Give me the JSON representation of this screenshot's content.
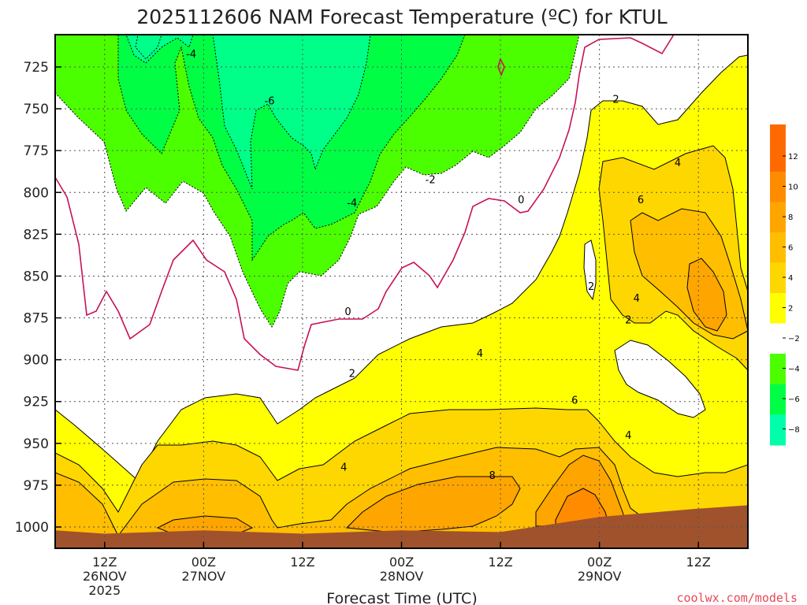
{
  "chart_data": {
    "type": "contour",
    "title": "2025112606 NAM Forecast Temperature (ºC) for KTUL",
    "xlabel": "Forecast Time (UTC)",
    "ylabel": "",
    "y_ticks": [
      725,
      750,
      775,
      800,
      825,
      850,
      875,
      900,
      925,
      950,
      975,
      1000
    ],
    "ylim": [
      1012,
      710
    ],
    "x_ticks": [
      {
        "label": "12Z",
        "sub": "26NOV",
        "sub2": "2025",
        "hour": 6
      },
      {
        "label": "00Z",
        "sub": "27NOV",
        "sub2": "",
        "hour": 18
      },
      {
        "label": "12Z",
        "sub": "",
        "sub2": "",
        "hour": 30
      },
      {
        "label": "00Z",
        "sub": "28NOV",
        "sub2": "",
        "hour": 42
      },
      {
        "label": "12Z",
        "sub": "",
        "sub2": "",
        "hour": 54
      },
      {
        "label": "00Z",
        "sub": "29NOV",
        "sub2": "",
        "hour": 66
      },
      {
        "label": "12Z",
        "sub": "",
        "sub2": "",
        "hour": 78
      }
    ],
    "xlim": [
      0,
      84
    ],
    "colorbar": {
      "levels": [
        {
          "value": "12",
          "color": "#ff6a00"
        },
        {
          "value": "10",
          "color": "#ff8c00"
        },
        {
          "value": "8",
          "color": "#ffa500"
        },
        {
          "value": "6",
          "color": "#ffbe00"
        },
        {
          "value": "4",
          "color": "#ffd700"
        },
        {
          "value": "2",
          "color": "#ffff00"
        },
        {
          "value": "−2",
          "color": "#ffffff"
        },
        {
          "value": "−4",
          "color": "#4cff00"
        },
        {
          "value": "−6",
          "color": "#00ff44"
        },
        {
          "value": "−8",
          "color": "#00ff88"
        }
      ],
      "bottom_color": "#00ffaa"
    },
    "contour_labels": [
      {
        "text": "-4",
        "hour": 16.5,
        "hpa": 717
      },
      {
        "text": "-6",
        "hour": 26.0,
        "hpa": 745
      },
      {
        "text": "-2",
        "hour": 45.5,
        "hpa": 792
      },
      {
        "text": "-4",
        "hour": 36.0,
        "hpa": 806
      },
      {
        "text": "0",
        "hour": 56.5,
        "hpa": 804
      },
      {
        "text": "0",
        "hour": 35.5,
        "hpa": 871
      },
      {
        "text": "2",
        "hour": 68.0,
        "hpa": 744
      },
      {
        "text": "4",
        "hour": 75.5,
        "hpa": 782
      },
      {
        "text": "6",
        "hour": 71.0,
        "hpa": 804
      },
      {
        "text": "2",
        "hour": 65.0,
        "hpa": 856
      },
      {
        "text": "4",
        "hour": 70.5,
        "hpa": 863
      },
      {
        "text": "2",
        "hour": 69.5,
        "hpa": 876
      },
      {
        "text": "2",
        "hour": 36.0,
        "hpa": 908
      },
      {
        "text": "4",
        "hour": 51.5,
        "hpa": 896
      },
      {
        "text": "6",
        "hour": 63.0,
        "hpa": 924
      },
      {
        "text": "4",
        "hour": 69.5,
        "hpa": 945
      },
      {
        "text": "4",
        "hour": 35.0,
        "hpa": 964
      },
      {
        "text": "8",
        "hour": 53.0,
        "hpa": 969
      }
    ],
    "terrain": [
      {
        "hour": 0,
        "hpa": 1002
      },
      {
        "hour": 6,
        "hpa": 1004
      },
      {
        "hour": 18,
        "hpa": 1002
      },
      {
        "hour": 30,
        "hpa": 1004
      },
      {
        "hour": 42,
        "hpa": 1002
      },
      {
        "hour": 54,
        "hpa": 1003
      },
      {
        "hour": 66,
        "hpa": 994
      },
      {
        "hour": 78,
        "hpa": 989
      },
      {
        "hour": 84,
        "hpa": 987
      }
    ]
  },
  "credit": "coolwx.com/models"
}
